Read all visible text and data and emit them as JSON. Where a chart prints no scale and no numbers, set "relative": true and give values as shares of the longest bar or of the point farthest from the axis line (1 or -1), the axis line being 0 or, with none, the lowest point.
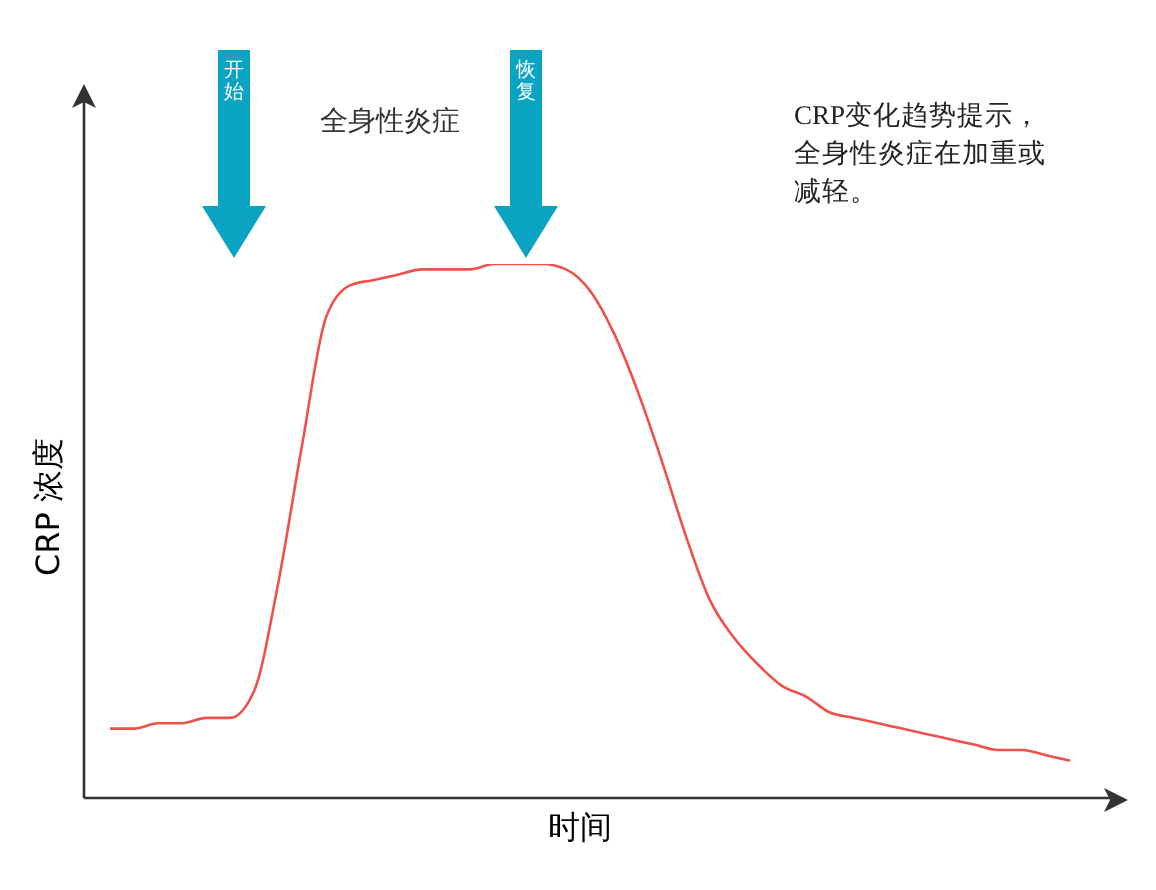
{
  "chart_data": {
    "type": "line",
    "relative": true,
    "xlabel": "时间",
    "ylabel": "CRP 浓度",
    "categories": [
      null,
      null,
      null,
      null,
      null,
      null,
      null,
      null,
      null,
      null,
      null,
      null,
      null,
      null,
      null,
      null,
      null,
      null,
      null,
      null,
      null,
      null,
      null,
      null,
      null,
      null,
      null,
      null,
      null,
      null,
      null,
      null,
      null,
      null,
      null,
      null,
      null,
      null,
      null,
      null,
      null
    ],
    "series": [
      {
        "color": "#f0504a",
        "values": [
          0.13,
          0.13,
          0.14,
          0.14,
          0.15,
          0.15,
          0.2,
          0.4,
          0.66,
          0.9,
          0.96,
          0.97,
          0.98,
          0.99,
          0.99,
          0.99,
          1.0,
          1,
          1.0,
          0.99,
          0.95,
          0.87,
          0.76,
          0.63,
          0.49,
          0.37,
          0.3,
          0.25,
          0.21,
          0.19,
          0.16,
          0.15,
          0.14,
          0.13,
          0.12,
          0.11,
          0.1,
          0.09,
          0.09,
          0.08,
          0.07
        ]
      }
    ],
    "marker": "none",
    "annotations": [
      "开始",
      "恢复",
      "全身性炎症",
      "CRP变化趋势提示，全身性炎症在加重或减轻。"
    ]
  }
}
